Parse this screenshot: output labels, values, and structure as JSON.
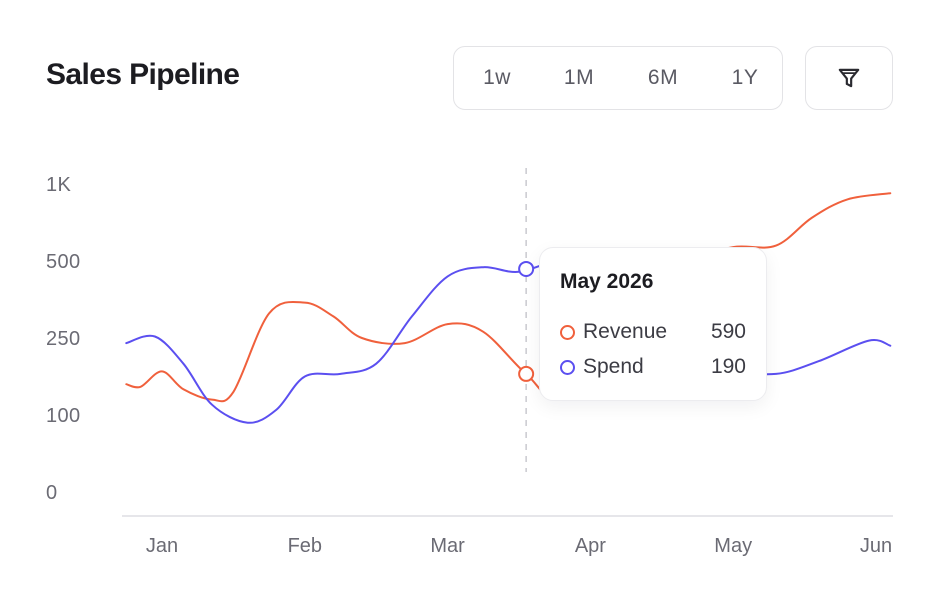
{
  "header": {
    "title": "Sales Pipeline"
  },
  "range_options": [
    "1w",
    "1M",
    "6M",
    "1Y"
  ],
  "filter": {
    "icon": "filter-funnel-icon"
  },
  "colors": {
    "revenue": "#f0603c",
    "spend": "#5b4ff0",
    "grid": "#e6e6ea",
    "hover_line": "#c9c9cf"
  },
  "chart_data": {
    "type": "line",
    "title": "Sales Pipeline",
    "xlabel": "",
    "ylabel": "",
    "x_ticks": [
      "Jan",
      "Feb",
      "Mar",
      "Apr",
      "May",
      "Jun"
    ],
    "y_ticks": [
      "0",
      "100",
      "250",
      "500",
      "1K"
    ],
    "y_tick_values": [
      0,
      100,
      250,
      500,
      1000
    ],
    "xlim": [
      0.75,
      6.1
    ],
    "series": [
      {
        "name": "Revenue",
        "color": "#f0603c",
        "x": [
          0.75,
          0.85,
          1.0,
          1.15,
          1.35,
          1.5,
          1.75,
          2.0,
          2.2,
          2.4,
          2.7,
          3.0,
          3.25,
          3.55,
          3.8,
          4.2,
          4.45,
          4.7,
          5.0,
          5.3,
          5.55,
          5.8,
          6.1
        ],
        "y": [
          160,
          155,
          185,
          150,
          130,
          145,
          330,
          365,
          320,
          250,
          240,
          295,
          270,
          180,
          135,
          300,
          385,
          500,
          590,
          600,
          780,
          900,
          940
        ]
      },
      {
        "name": "Spend",
        "color": "#5b4ff0",
        "x": [
          0.75,
          0.95,
          1.15,
          1.35,
          1.6,
          1.8,
          2.0,
          2.25,
          2.5,
          2.75,
          3.0,
          3.25,
          3.5,
          3.8,
          4.0,
          4.25,
          4.5,
          4.8,
          5.0,
          5.3,
          5.6,
          5.95,
          6.1
        ],
        "y": [
          240,
          255,
          200,
          120,
          90,
          110,
          175,
          180,
          200,
          320,
          450,
          480,
          465,
          520,
          555,
          480,
          360,
          230,
          190,
          180,
          205,
          245,
          235
        ]
      }
    ],
    "hover_x": 3.55,
    "tooltip": {
      "title": "May 2026",
      "rows": [
        {
          "label": "Revenue",
          "value": "590"
        },
        {
          "label": "Spend",
          "value": "190"
        }
      ]
    },
    "grid": false,
    "legend": "tooltip"
  }
}
